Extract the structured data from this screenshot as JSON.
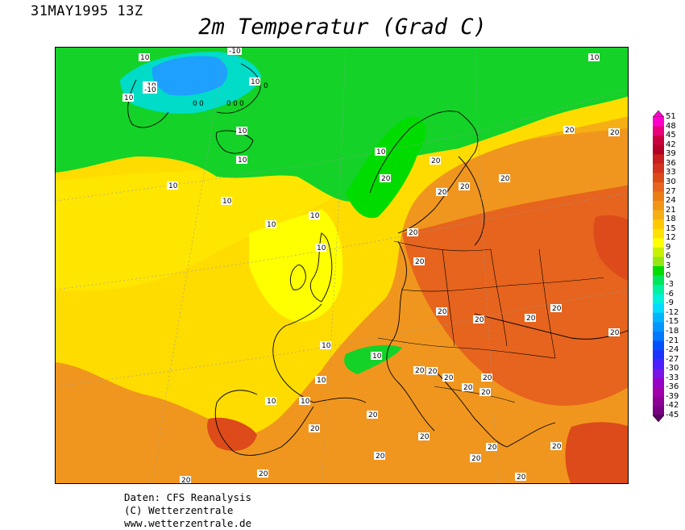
{
  "date_label": "31MAY1995 13Z",
  "title": "2m Temperatur (Grad C)",
  "credits": [
    "Daten: CFS Reanalysis",
    "(C) Wetterzentrale",
    "www.wetterzentrale.de"
  ],
  "legend": {
    "levels": [
      51,
      48,
      45,
      42,
      39,
      36,
      33,
      30,
      27,
      24,
      21,
      18,
      15,
      12,
      9,
      6,
      3,
      0,
      -3,
      -6,
      -9,
      -12,
      -15,
      -18,
      -21,
      -24,
      -27,
      -30,
      -33,
      -36,
      -39,
      -42,
      -45
    ],
    "colors": [
      "#ff00cc",
      "#e8007a",
      "#c80040",
      "#b40028",
      "#c81e1e",
      "#d2321e",
      "#dc4b19",
      "#e6641e",
      "#eb7d14",
      "#f09614",
      "#f5af14",
      "#ffc800",
      "#ffe100",
      "#ffff00",
      "#c8f000",
      "#96e614",
      "#00dc00",
      "#00e65a",
      "#00f0a0",
      "#00f0dc",
      "#00dcff",
      "#00b4ff",
      "#0096ff",
      "#0078ff",
      "#0050ff",
      "#1e32ff",
      "#4b1eff",
      "#7814e6",
      "#9600c8",
      "#a000aa",
      "#8c0096",
      "#780082",
      "#5a0064"
    ]
  },
  "contour_labels": [
    {
      "text": "-10"
    },
    {
      "text": "-10"
    },
    {
      "text": "-10"
    },
    {
      "text": "10"
    },
    {
      "text": "10"
    },
    {
      "text": "0"
    },
    {
      "text": "0"
    },
    {
      "text": "0"
    },
    {
      "text": "0"
    },
    {
      "text": "0"
    },
    {
      "text": "0"
    },
    {
      "text": "10"
    },
    {
      "text": "10"
    },
    {
      "text": "10"
    },
    {
      "text": "10"
    },
    {
      "text": "10"
    },
    {
      "text": "10"
    },
    {
      "text": "10"
    },
    {
      "text": "10"
    },
    {
      "text": "10"
    },
    {
      "text": "10"
    },
    {
      "text": "10"
    },
    {
      "text": "10"
    },
    {
      "text": "10"
    },
    {
      "text": "10"
    },
    {
      "text": "10"
    },
    {
      "text": "20"
    },
    {
      "text": "20"
    },
    {
      "text": "20"
    },
    {
      "text": "20"
    },
    {
      "text": "20"
    },
    {
      "text": "20"
    },
    {
      "text": "20"
    },
    {
      "text": "20"
    },
    {
      "text": "20"
    },
    {
      "text": "20"
    },
    {
      "text": "20"
    },
    {
      "text": "20"
    },
    {
      "text": "20"
    },
    {
      "text": "20"
    },
    {
      "text": "20"
    },
    {
      "text": "20"
    },
    {
      "text": "20"
    },
    {
      "text": "20"
    },
    {
      "text": "20"
    },
    {
      "text": "20"
    },
    {
      "text": "20"
    },
    {
      "text": "20"
    },
    {
      "text": "20"
    },
    {
      "text": "20"
    },
    {
      "text": "20"
    },
    {
      "text": "20"
    },
    {
      "text": "20"
    },
    {
      "text": "20"
    },
    {
      "text": "20"
    },
    {
      "text": "20"
    }
  ]
}
